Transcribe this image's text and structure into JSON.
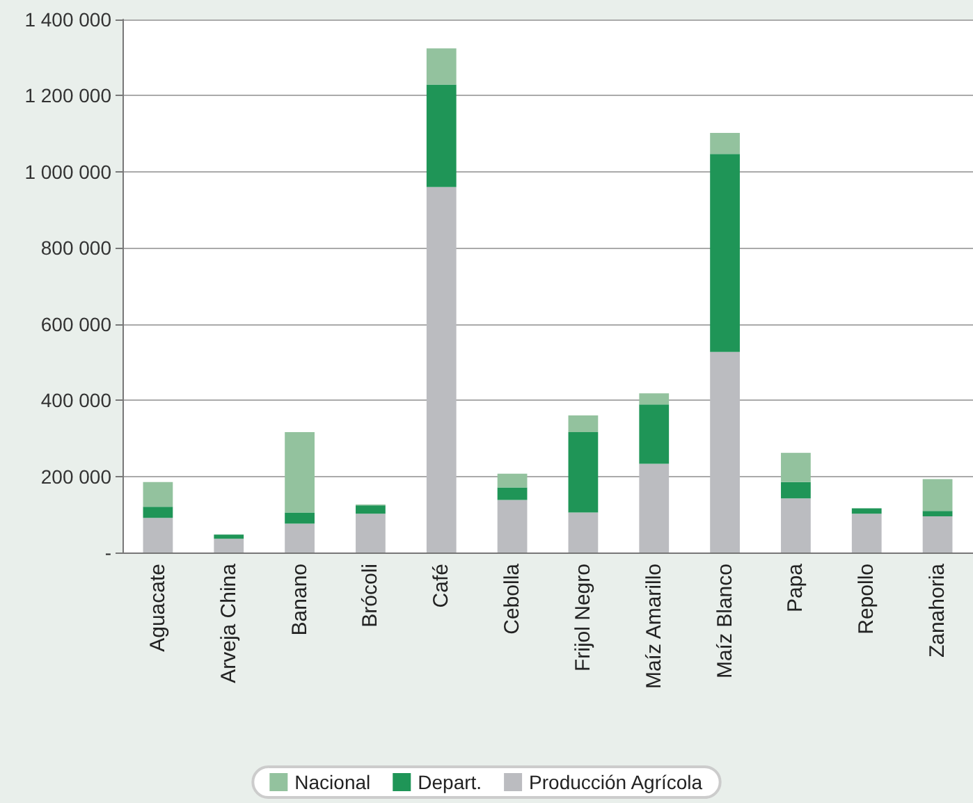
{
  "chart_data": {
    "type": "bar",
    "stacked": true,
    "categories": [
      "Aguacate",
      "Arveja China",
      "Banano",
      "Brócoli",
      "Café",
      "Cebolla",
      "Frijol Negro",
      "Maíz Amarillo",
      "Maíz Blanco",
      "Papa",
      "Repollo",
      "Zanahoria"
    ],
    "series": [
      {
        "name": "Producción Agrícola",
        "color": "#bbbcc0",
        "values": [
          91000,
          36000,
          76000,
          102000,
          960000,
          138000,
          105000,
          233000,
          527000,
          142000,
          102000,
          95000
        ]
      },
      {
        "name": "Depart.",
        "color": "#1f9557",
        "values": [
          29000,
          11000,
          29000,
          22000,
          269000,
          33000,
          211000,
          156000,
          520000,
          43000,
          14000,
          14000
        ]
      },
      {
        "name": "Nacional",
        "color": "#93c29e",
        "values": [
          65000,
          0,
          211000,
          2000,
          95000,
          36000,
          44000,
          29000,
          55000,
          77000,
          0,
          84000
        ]
      }
    ],
    "ylim": [
      0,
      1400000
    ],
    "yticks": [
      {
        "value": 0,
        "label": "-"
      },
      {
        "value": 200000,
        "label": "200 000"
      },
      {
        "value": 400000,
        "label": "400 000"
      },
      {
        "value": 600000,
        "label": "600 000"
      },
      {
        "value": 800000,
        "label": "800 000"
      },
      {
        "value": 1000000,
        "label": "1 000 000"
      },
      {
        "value": 1200000,
        "label": "1 200 000"
      },
      {
        "value": 1400000,
        "label": "1 400 000"
      }
    ],
    "grid": "y",
    "legend": "bottom"
  }
}
